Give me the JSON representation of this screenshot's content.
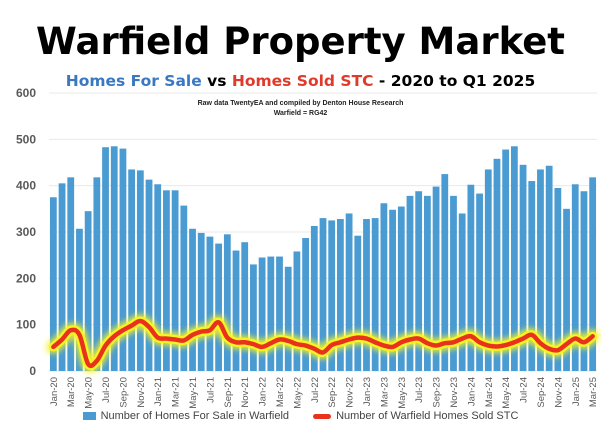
{
  "header": {
    "title": "Warfield Property Market",
    "subtitle_part1": "Homes For Sale",
    "subtitle_part2": " vs ",
    "subtitle_part3": "Homes Sold STC",
    "subtitle_part4": " - 2020 to Q1 2025",
    "note_line1": "Raw data TwentyEA and compiled by Denton House Research",
    "note_line2": "Warfield  = RG42"
  },
  "colors": {
    "bar": "#4a9bd2",
    "line": "#e8321e",
    "glow": "#f7f423",
    "subtitle_blue": "#3a78c2",
    "subtitle_red": "#e03a2a"
  },
  "chart_data": {
    "type": "bar",
    "title": "Warfield Property Market",
    "subtitle": "Homes For Sale vs Homes Sold STC - 2020 to Q1 2025",
    "xlabel": "",
    "ylabel": "",
    "ylim": [
      0,
      600
    ],
    "yticks": [
      0,
      100,
      200,
      300,
      400,
      500,
      600
    ],
    "grid": true,
    "legend_position": "bottom",
    "x": [
      "Jan-20",
      "Feb-20",
      "Mar-20",
      "Apr-20",
      "May-20",
      "Jun-20",
      "Jul-20",
      "Aug-20",
      "Sep-20",
      "Oct-20",
      "Nov-20",
      "Dec-20",
      "Jan-21",
      "Feb-21",
      "Mar-21",
      "Apr-21",
      "May-21",
      "Jun-21",
      "Jul-21",
      "Aug-21",
      "Sep-21",
      "Oct-21",
      "Nov-21",
      "Dec-21",
      "Jan-22",
      "Feb-22",
      "Mar-22",
      "Apr-22",
      "May-22",
      "Jun-22",
      "Jul-22",
      "Aug-22",
      "Sep-22",
      "Oct-22",
      "Nov-22",
      "Dec-22",
      "Jan-23",
      "Feb-23",
      "Mar-23",
      "Apr-23",
      "May-23",
      "Jun-23",
      "Jul-23",
      "Aug-23",
      "Sep-23",
      "Oct-23",
      "Nov-23",
      "Dec-23",
      "Jan-24",
      "Feb-24",
      "Mar-24",
      "Apr-24",
      "May-24",
      "Jun-24",
      "Jul-24",
      "Aug-24",
      "Sep-24",
      "Oct-24",
      "Nov-24",
      "Dec-24",
      "Jan-25",
      "Feb-25",
      "Mar-25"
    ],
    "tick_labels": [
      "Jan-20",
      "Mar-20",
      "May-20",
      "Jul-20",
      "Sep-20",
      "Nov-20",
      "Jan-21",
      "Mar-21",
      "May-21",
      "Jul-21",
      "Sep-21",
      "Nov-21",
      "Jan-22",
      "Mar-22",
      "May-22",
      "Jul-22",
      "Sep-22",
      "Nov-22",
      "Jan-23",
      "Mar-23",
      "May-23",
      "Jul-23",
      "Sep-23",
      "Nov-23",
      "Jan-24",
      "Mar-24",
      "May-24",
      "Jul-24",
      "Sep-24",
      "Nov-24",
      "Jan-25",
      "Mar-25"
    ],
    "series": [
      {
        "name": "Number of Homes For Sale in Warfield",
        "type": "bar",
        "values": [
          375,
          405,
          418,
          307,
          345,
          418,
          483,
          485,
          480,
          435,
          433,
          413,
          403,
          390,
          390,
          357,
          307,
          298,
          290,
          275,
          295,
          260,
          278,
          230,
          245,
          247,
          247,
          225,
          258,
          287,
          313,
          330,
          325,
          328,
          340,
          292,
          328,
          330,
          362,
          348,
          355,
          378,
          388,
          378,
          398,
          425,
          378,
          340,
          402,
          383,
          435,
          458,
          478,
          485,
          445,
          410,
          435,
          443,
          395,
          350,
          403,
          388,
          418
        ]
      },
      {
        "name": "Number of Warfield Homes Sold STC",
        "type": "line",
        "values": [
          52,
          68,
          88,
          78,
          15,
          22,
          55,
          75,
          88,
          98,
          108,
          95,
          72,
          70,
          68,
          66,
          78,
          85,
          88,
          105,
          72,
          62,
          62,
          58,
          52,
          60,
          68,
          65,
          58,
          55,
          48,
          40,
          56,
          62,
          68,
          72,
          70,
          62,
          55,
          52,
          62,
          68,
          70,
          60,
          55,
          60,
          62,
          70,
          75,
          62,
          55,
          53,
          56,
          62,
          70,
          78,
          60,
          48,
          45,
          58,
          70,
          62,
          75
        ]
      }
    ]
  }
}
